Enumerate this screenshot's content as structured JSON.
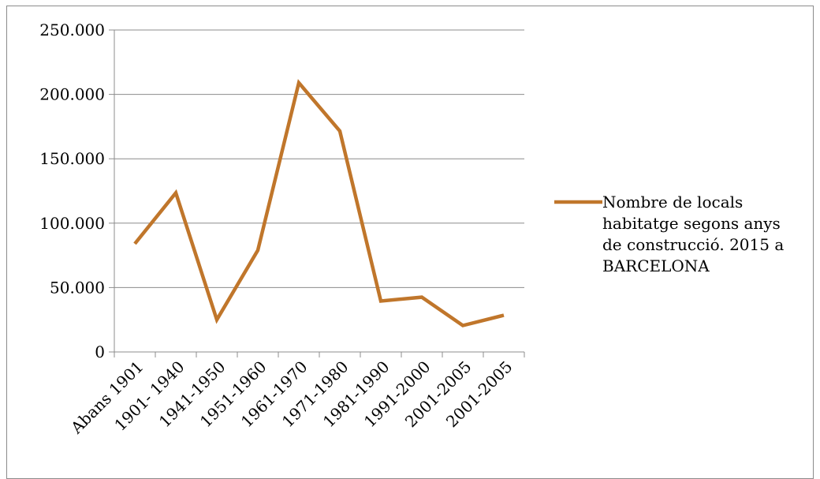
{
  "chart_data": {
    "type": "line",
    "categories": [
      "Abans 1901",
      "1901- 1940",
      "1941-1950",
      "1951-1960",
      "1961-1970",
      "1971-1980",
      "1981-1990",
      "1991-2000",
      "2001-2005",
      "2001-2005"
    ],
    "series": [
      {
        "name": "Nombre de locals habitatge segons anys de construcció. 2015 a BARCELONA",
        "values": [
          84000,
          123500,
          25000,
          79000,
          209000,
          171500,
          39500,
          42500,
          20500,
          28500
        ],
        "color": "#c0762b"
      }
    ],
    "title": "",
    "xlabel": "",
    "ylabel": "",
    "ylim": [
      0,
      250000
    ],
    "yticks": [
      {
        "value": 0,
        "label": "0"
      },
      {
        "value": 50000,
        "label": "50.000"
      },
      {
        "value": 100000,
        "label": "100.000"
      },
      {
        "value": 150000,
        "label": "150.000"
      },
      {
        "value": 200000,
        "label": "200.000"
      },
      {
        "value": 250000,
        "label": "250.000"
      }
    ],
    "grid": true,
    "legend": {
      "position": "right",
      "lines": [
        "Nombre de locals",
        "habitatge segons anys",
        "de construcció. 2015 a",
        "BARCELONA"
      ]
    },
    "colors": {
      "grid": "#8c8c8c",
      "axis": "#8c8c8c",
      "text": "#000000"
    }
  }
}
